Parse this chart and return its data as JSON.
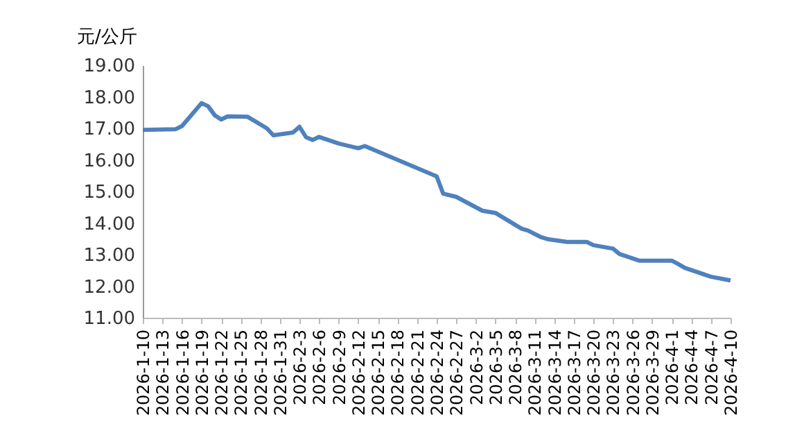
{
  "chart_data": {
    "type": "line",
    "ylabel": "元/公斤",
    "x": [
      "2026-01-10",
      "2026-01-15",
      "2026-01-16",
      "2026-01-19",
      "2026-01-20",
      "2026-01-21",
      "2026-01-22",
      "2026-01-23",
      "2026-01-26",
      "2026-01-27",
      "2026-01-29",
      "2026-01-30",
      "2026-02-02",
      "2026-02-03",
      "2026-02-04",
      "2026-02-05",
      "2026-02-06",
      "2026-02-09",
      "2026-02-12",
      "2026-02-13",
      "2026-02-24",
      "2026-02-25",
      "2026-02-27",
      "2026-03-03",
      "2026-03-05",
      "2026-03-09",
      "2026-03-10",
      "2026-03-12",
      "2026-03-13",
      "2026-03-16",
      "2026-03-19",
      "2026-03-20",
      "2026-03-23",
      "2026-03-24",
      "2026-03-27",
      "2026-04-01",
      "2026-04-02",
      "2026-04-03",
      "2026-04-07",
      "2026-04-10"
    ],
    "series": [
      {
        "color": "#4f81bd",
        "values": [
          16.95,
          16.97,
          17.07,
          17.8,
          17.7,
          17.42,
          17.28,
          17.38,
          17.37,
          17.25,
          17.0,
          16.78,
          16.87,
          17.05,
          16.72,
          16.63,
          16.73,
          16.52,
          16.37,
          16.44,
          15.48,
          14.93,
          14.83,
          14.39,
          14.32,
          13.82,
          13.76,
          13.55,
          13.49,
          13.4,
          13.4,
          13.3,
          13.19,
          13.02,
          12.81,
          12.81,
          12.7,
          12.58,
          12.3,
          12.18
        ]
      }
    ],
    "xlim": [
      "2026-01-10",
      "2026-04-10"
    ],
    "xticks": [
      {
        "value": "2026-01-10",
        "label": "2026-1-10"
      },
      {
        "value": "2026-01-13",
        "label": "2026-1-13"
      },
      {
        "value": "2026-01-16",
        "label": "2026-1-16"
      },
      {
        "value": "2026-01-19",
        "label": "2026-1-19"
      },
      {
        "value": "2026-01-22",
        "label": "2026-1-22"
      },
      {
        "value": "2026-01-25",
        "label": "2026-1-25"
      },
      {
        "value": "2026-01-28",
        "label": "2026-1-28"
      },
      {
        "value": "2026-01-31",
        "label": "2026-1-31"
      },
      {
        "value": "2026-02-03",
        "label": "2026-2-3"
      },
      {
        "value": "2026-02-06",
        "label": "2026-2-6"
      },
      {
        "value": "2026-02-09",
        "label": "2026-2-9"
      },
      {
        "value": "2026-02-12",
        "label": "2026-2-12"
      },
      {
        "value": "2026-02-15",
        "label": "2026-2-15"
      },
      {
        "value": "2026-02-18",
        "label": "2026-2-18"
      },
      {
        "value": "2026-02-21",
        "label": "2026-2-21"
      },
      {
        "value": "2026-02-24",
        "label": "2026-2-24"
      },
      {
        "value": "2026-02-27",
        "label": "2026-2-27"
      },
      {
        "value": "2026-03-02",
        "label": "2026-3-2"
      },
      {
        "value": "2026-03-05",
        "label": "2026-3-5"
      },
      {
        "value": "2026-03-08",
        "label": "2026-3-8"
      },
      {
        "value": "2026-03-11",
        "label": "2026-3-11"
      },
      {
        "value": "2026-03-14",
        "label": "2026-3-14"
      },
      {
        "value": "2026-03-17",
        "label": "2026-3-17"
      },
      {
        "value": "2026-03-20",
        "label": "2026-3-20"
      },
      {
        "value": "2026-03-23",
        "label": "2026-3-23"
      },
      {
        "value": "2026-03-26",
        "label": "2026-3-26"
      },
      {
        "value": "2026-03-29",
        "label": "2026-3-29"
      },
      {
        "value": "2026-04-01",
        "label": "2026-4-1"
      },
      {
        "value": "2026-04-04",
        "label": "2026-4-4"
      },
      {
        "value": "2026-04-07",
        "label": "2026-4-7"
      },
      {
        "value": "2026-04-10",
        "label": "2026-4-10"
      }
    ],
    "ylim": [
      11,
      19
    ],
    "yticks": [
      {
        "value": 11,
        "label": "11.00"
      },
      {
        "value": 12,
        "label": "12.00"
      },
      {
        "value": 13,
        "label": "13.00"
      },
      {
        "value": 14,
        "label": "14.00"
      },
      {
        "value": 15,
        "label": "15.00"
      },
      {
        "value": 16,
        "label": "16.00"
      },
      {
        "value": 17,
        "label": "17.00"
      },
      {
        "value": 18,
        "label": "18.00"
      },
      {
        "value": 19,
        "label": "19.00"
      }
    ],
    "grid": false,
    "marker": "none",
    "line_style": "solid"
  }
}
